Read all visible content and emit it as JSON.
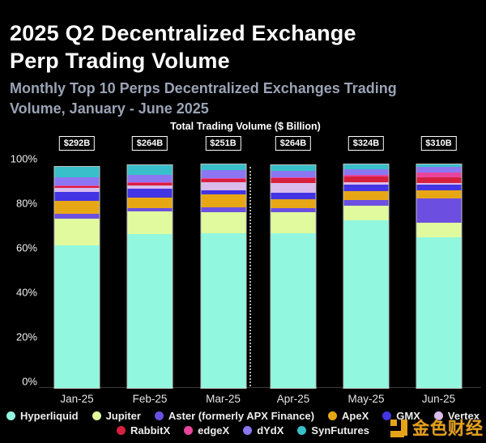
{
  "header": {
    "title_line1": "2025 Q2 Decentralized Exchange",
    "title_line2": "Perp Trading Volume",
    "subtitle_line1": "Monthly Top 10 Perps Decentralized Exchanges Trading",
    "subtitle_line2": "Volume, January - June 2025"
  },
  "chart_data": {
    "type": "bar",
    "stacked": true,
    "units": "percent of monthly total",
    "title": "Total Trading Volume ($ Billion)",
    "categories": [
      "Jan-25",
      "Feb-25",
      "Mar-25",
      "Apr-25",
      "May-25",
      "Jun-25"
    ],
    "monthly_totals": [
      "$292B",
      "$264B",
      "$251B",
      "$264B",
      "$324B",
      "$310B"
    ],
    "y_ticks": [
      "100%",
      "80%",
      "60%",
      "40%",
      "20%",
      "0%"
    ],
    "ylim": [
      0,
      100
    ],
    "grid": false,
    "legend_position": "bottom",
    "quarter_separator_between": [
      "Mar-25",
      "Apr-25"
    ],
    "series": [
      {
        "name": "Hyperliquid",
        "color": "#92F7DF",
        "values": [
          63.0,
          68.0,
          68.5,
          68.5,
          74.0,
          66.5
        ]
      },
      {
        "name": "Jupiter",
        "color": "#E1FA9D",
        "values": [
          11.8,
          10.0,
          9.3,
          9.3,
          6.7,
          6.6
        ]
      },
      {
        "name": "Aster (formerly APX Finance)",
        "color": "#6C4FE0",
        "values": [
          2.1,
          1.6,
          2.0,
          1.6,
          2.4,
          10.9
        ]
      },
      {
        "name": "ApeX",
        "color": "#E7A715",
        "values": [
          5.8,
          4.5,
          5.7,
          4.1,
          3.9,
          3.6
        ]
      },
      {
        "name": "GMX",
        "color": "#4334E4",
        "values": [
          4.2,
          4.2,
          1.8,
          2.8,
          2.8,
          2.4
        ]
      },
      {
        "name": "Vertex",
        "color": "#D9BCEC",
        "values": [
          1.7,
          1.4,
          3.9,
          4.2,
          1.2,
          0.6
        ]
      },
      {
        "name": "RabbitX",
        "color": "#D7203E",
        "values": [
          0.7,
          0.8,
          1.2,
          2.2,
          2.6,
          2.7
        ]
      },
      {
        "name": "edgeX",
        "color": "#E9459D",
        "values": [
          0.3,
          0.4,
          0.4,
          0.5,
          0.7,
          2.2
        ]
      },
      {
        "name": "dYdX",
        "color": "#8B77F2",
        "values": [
          3.6,
          3.3,
          3.6,
          2.8,
          2.4,
          2.2
        ]
      },
      {
        "name": "SynFutures",
        "color": "#39BFC9",
        "values": [
          4.8,
          4.5,
          2.4,
          2.7,
          2.2,
          1.1
        ]
      }
    ],
    "legend_rows": [
      [
        0,
        1,
        2,
        3,
        4,
        5
      ],
      [
        6,
        7,
        8,
        9
      ]
    ]
  },
  "watermark": {
    "text": "金色财经"
  }
}
